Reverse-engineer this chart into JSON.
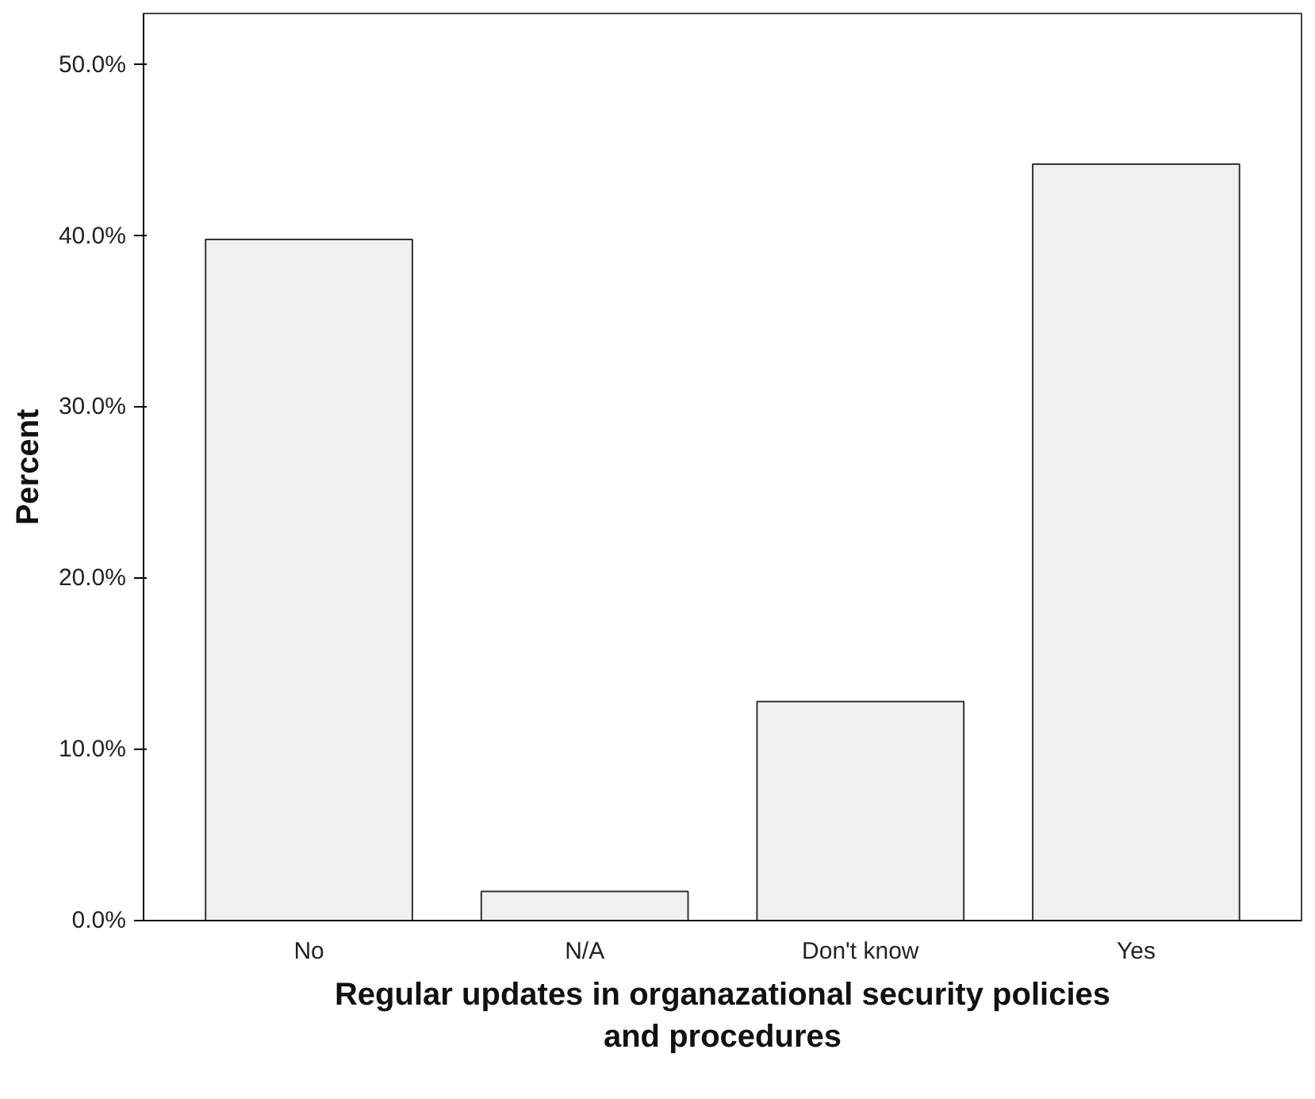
{
  "chart_data": {
    "type": "bar",
    "categories": [
      "No",
      "N/A",
      "Don't know",
      "Yes"
    ],
    "values": [
      39.8,
      1.7,
      12.8,
      44.2
    ],
    "color": "#f0f0f0",
    "xlabel": "Regular updates in organazational security policies and procedures",
    "ylabel": "Percent",
    "ylim": [
      0,
      53
    ],
    "yticks": [
      {
        "value": 0,
        "label": "0.0%"
      },
      {
        "value": 10,
        "label": "10.0%"
      },
      {
        "value": 20,
        "label": "20.0%"
      },
      {
        "value": 30,
        "label": "30.0%"
      },
      {
        "value": 40,
        "label": "40.0%"
      },
      {
        "value": 50,
        "label": "50.0%"
      }
    ]
  }
}
